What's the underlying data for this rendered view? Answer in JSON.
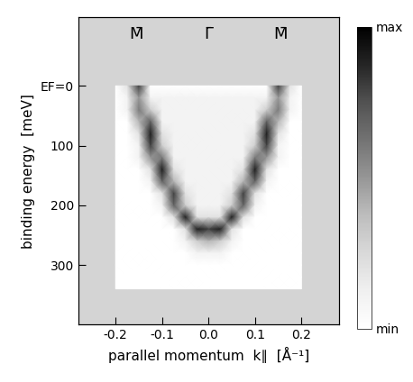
{
  "chart_data": {
    "type": "heatmap",
    "xlabel": "parallel momentum  k∥  [Å⁻¹]",
    "ylabel": "binding energy  [meV]",
    "x": [
      -0.2,
      -0.175,
      -0.15,
      -0.125,
      -0.1,
      -0.075,
      -0.05,
      -0.025,
      0.0,
      0.025,
      0.05,
      0.075,
      0.1,
      0.125,
      0.15,
      0.175,
      0.2
    ],
    "y": [
      0,
      20,
      40,
      60,
      80,
      100,
      120,
      140,
      160,
      180,
      200,
      220,
      240,
      260,
      280,
      300,
      320,
      340
    ],
    "cells": [
      [
        0,
        2,
        8,
        0,
        0,
        0,
        0,
        0,
        0,
        0,
        0,
        0,
        0,
        0,
        8,
        2,
        0
      ],
      [
        0,
        1,
        5,
        1,
        1,
        1,
        1,
        1,
        1,
        1,
        1,
        1,
        1,
        1,
        5,
        1,
        0
      ],
      [
        0,
        1,
        6,
        3,
        1,
        1,
        1,
        1,
        1,
        1,
        1,
        1,
        1,
        3,
        6,
        1,
        0
      ],
      [
        0,
        0,
        4,
        7,
        1,
        1,
        1,
        1,
        1,
        1,
        1,
        1,
        1,
        7,
        4,
        0,
        0
      ],
      [
        0,
        0,
        2,
        9,
        2,
        1,
        1,
        1,
        1,
        1,
        1,
        1,
        2,
        9,
        2,
        0,
        0
      ],
      [
        0,
        0,
        1,
        8,
        3,
        1,
        1,
        1,
        1,
        1,
        1,
        1,
        3,
        8,
        1,
        0,
        0
      ],
      [
        0,
        0,
        1,
        5,
        6,
        1,
        1,
        1,
        1,
        1,
        1,
        1,
        6,
        5,
        1,
        0,
        0
      ],
      [
        0,
        0,
        0,
        2,
        9,
        2,
        1,
        1,
        1,
        1,
        1,
        2,
        9,
        2,
        0,
        0,
        0
      ],
      [
        0,
        0,
        0,
        1,
        7,
        4,
        1,
        1,
        1,
        1,
        1,
        4,
        7,
        1,
        0,
        0,
        0
      ],
      [
        0,
        0,
        0,
        0,
        2,
        8,
        2,
        1,
        1,
        1,
        2,
        8,
        2,
        0,
        0,
        0,
        0
      ],
      [
        0,
        0,
        0,
        0,
        1,
        7,
        3,
        1,
        1,
        1,
        3,
        7,
        1,
        0,
        0,
        0,
        0
      ],
      [
        0,
        0,
        0,
        0,
        0,
        2,
        9,
        2,
        2,
        2,
        9,
        2,
        0,
        0,
        0,
        0,
        0
      ],
      [
        0,
        0,
        0,
        0,
        0,
        0,
        2,
        9,
        8,
        9,
        2,
        0,
        0,
        0,
        0,
        0,
        0
      ],
      [
        0,
        0,
        0,
        0,
        0,
        0,
        1,
        3,
        4,
        3,
        1,
        0,
        0,
        0,
        0,
        0,
        0
      ],
      [
        0,
        0,
        0,
        0,
        0,
        0,
        0,
        1,
        1,
        1,
        0,
        0,
        0,
        0,
        0,
        0,
        0
      ],
      [
        0,
        0,
        0,
        0,
        0,
        0,
        0,
        0,
        0,
        0,
        0,
        0,
        0,
        0,
        0,
        0,
        0
      ],
      [
        0,
        0,
        0,
        0,
        0,
        0,
        0,
        0,
        0,
        0,
        0,
        0,
        0,
        0,
        0,
        0,
        0
      ],
      [
        0,
        0,
        0,
        0,
        0,
        0,
        0,
        0,
        0,
        0,
        0,
        0,
        0,
        0,
        0,
        0,
        0
      ]
    ],
    "color": "Greys",
    "xlim": [
      -0.28,
      0.28
    ],
    "ylim": [
      400,
      -115
    ],
    "xticks": [
      {
        "value": -0.2,
        "label": "-0.2"
      },
      {
        "value": -0.1,
        "label": "-0.1"
      },
      {
        "value": 0.0,
        "label": "0.0"
      },
      {
        "value": 0.1,
        "label": "0.1"
      },
      {
        "value": 0.2,
        "label": "0.2"
      }
    ],
    "x2ticks": [
      {
        "value": -0.155,
        "label": "M̄"
      },
      {
        "value": 0.0,
        "label": "Γ̄"
      },
      {
        "value": 0.155,
        "label": "M̄"
      }
    ],
    "yticks": [
      {
        "value": 0,
        "label": "EF=0"
      },
      100,
      200,
      300
    ],
    "colorbar_range": [
      0,
      10
    ],
    "colorbar_ticks": [
      {
        "value": 0,
        "label": "min"
      },
      {
        "value": 10,
        "label": "max"
      }
    ]
  }
}
